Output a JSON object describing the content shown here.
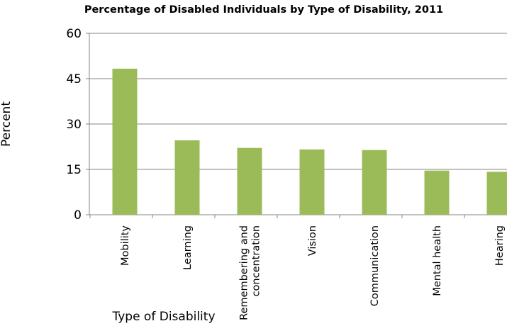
{
  "chart_data": {
    "type": "bar",
    "title": "Percentage of Disabled Individuals by Type of Disability, 2011",
    "xlabel": "Type of Disability",
    "ylabel": "Percent",
    "categories": [
      [
        "Mobility"
      ],
      [
        "Learning"
      ],
      [
        "Remembering and",
        "concentration"
      ],
      [
        "Vision"
      ],
      [
        "Communication"
      ],
      [
        "Mental health"
      ],
      [
        "Hearing"
      ]
    ],
    "values": [
      48.3,
      24.6,
      22.1,
      21.6,
      21.4,
      14.6,
      14.2
    ],
    "ylim": [
      0,
      60
    ],
    "yticks": [
      "0",
      "15",
      "30",
      "45",
      "60"
    ],
    "grid": true,
    "legend": "none",
    "colors": {
      "bar": "#9BBB59",
      "grid": "#868686",
      "axis": "#868686"
    }
  }
}
